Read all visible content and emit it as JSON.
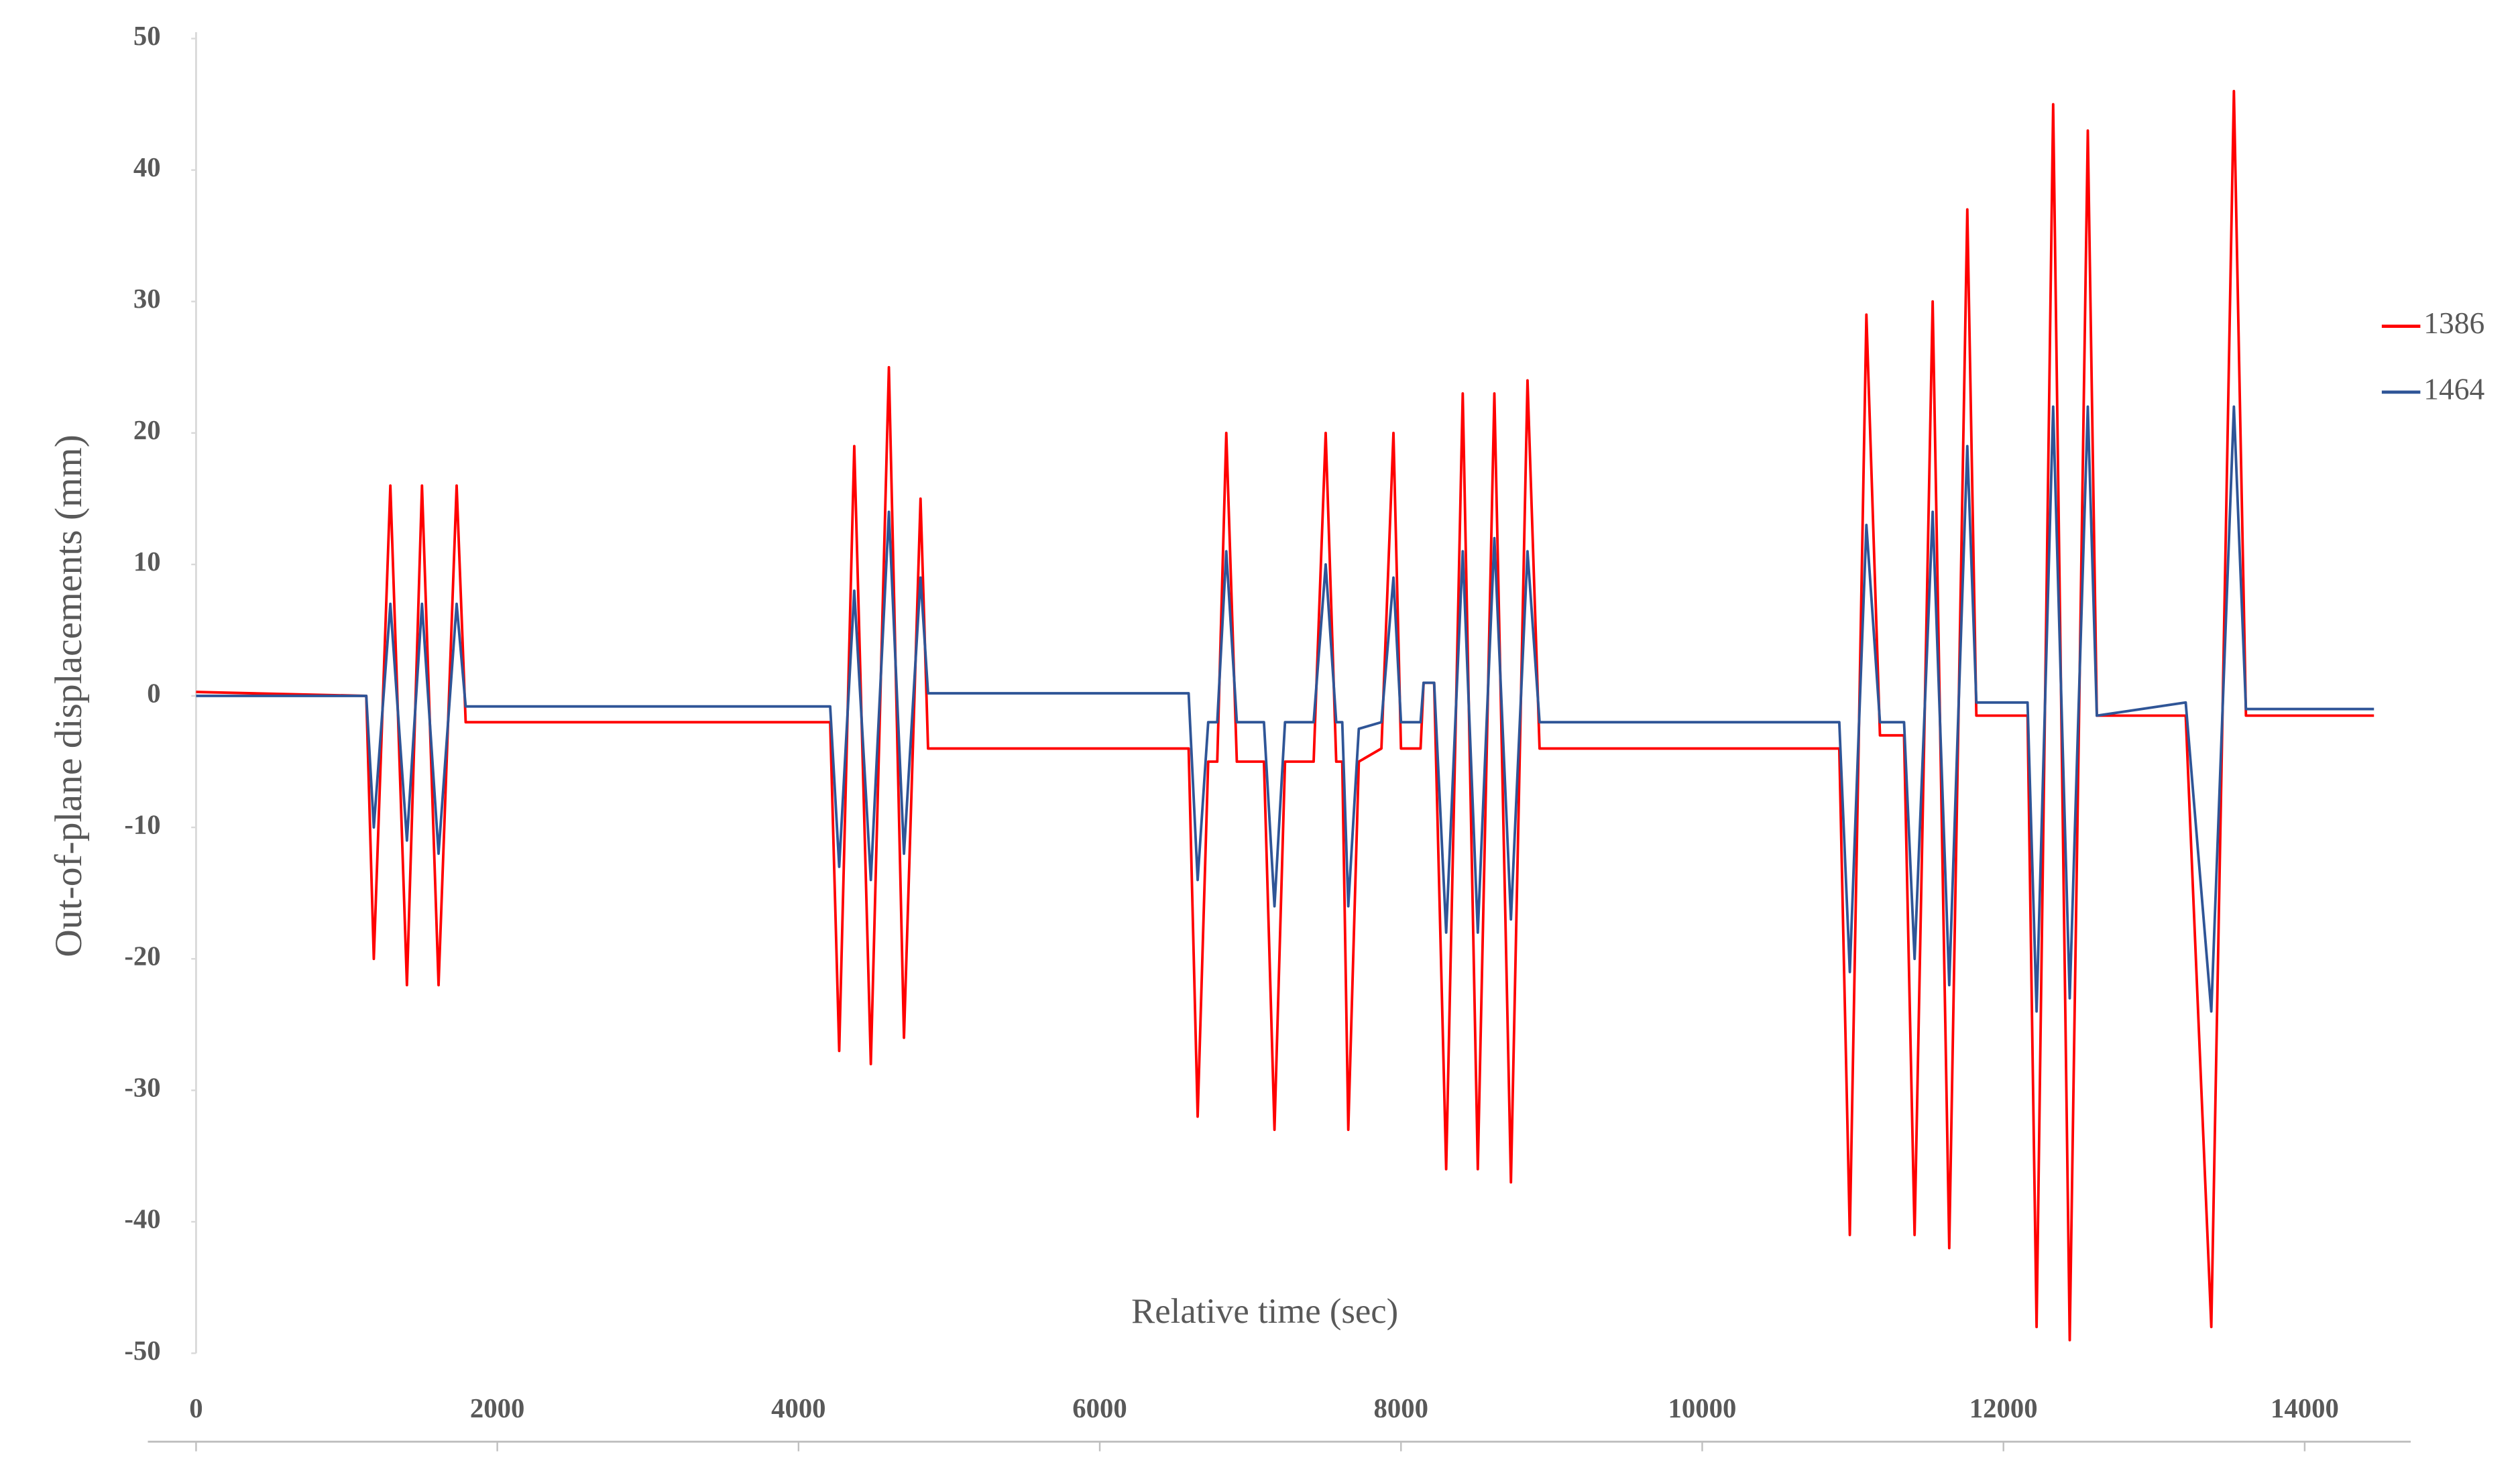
{
  "chart_data": {
    "type": "line",
    "x_label": "Relative time (sec)",
    "y_label": "Out-of-plane displacements (mm)",
    "x": [
      0,
      1130,
      1180,
      1290,
      1400,
      1500,
      1610,
      1730,
      1790,
      4210,
      4270,
      4370,
      4480,
      4600,
      4700,
      4810,
      4860,
      6590,
      6650,
      6720,
      6780,
      6840,
      6910,
      7090,
      7160,
      7230,
      7420,
      7500,
      7570,
      7610,
      7650,
      7720,
      7870,
      7950,
      8000,
      8130,
      8150,
      8220,
      8300,
      8410,
      8510,
      8620,
      8730,
      8840,
      8920,
      10910,
      10980,
      11090,
      11180,
      11340,
      11410,
      11530,
      11640,
      11760,
      11820,
      12160,
      12220,
      12330,
      12440,
      12560,
      12620,
      13210,
      13380,
      13530,
      13610,
      14460
    ],
    "series": [
      {
        "name": "1386",
        "color": "#ff0000",
        "values": [
          0.3,
          0,
          -20,
          16,
          -22,
          16,
          -22,
          16,
          -2,
          -2,
          -27,
          19,
          -28,
          25,
          -26,
          15,
          -4,
          -4,
          -32,
          -5,
          -5,
          20,
          -5,
          -5,
          -33,
          -5,
          -5,
          20,
          -5,
          -5,
          -33,
          -5,
          -4,
          20,
          -4,
          -4,
          1,
          1,
          -36,
          23,
          -36,
          23,
          -37,
          24,
          -4,
          -4,
          -41,
          29,
          -3,
          -3,
          -41,
          30,
          -42,
          37,
          -1.5,
          -1.5,
          -48,
          45,
          -49,
          43,
          -1.5,
          -1.5,
          -48,
          46,
          -1.5,
          -1.5
        ]
      },
      {
        "name": "1464",
        "color": "#2f5597",
        "values": [
          0,
          0,
          -10,
          7,
          -11,
          7,
          -12,
          7,
          -0.8,
          -0.8,
          -13,
          8,
          -14,
          14,
          -12,
          9,
          0.2,
          0.2,
          -14,
          -2,
          -2,
          11,
          -2,
          -2,
          -16,
          -2,
          -2,
          10,
          -2,
          -2,
          -16,
          -2.5,
          -2,
          9,
          -2,
          -2,
          1,
          1,
          -18,
          11,
          -18,
          12,
          -17,
          11,
          -2,
          -2,
          -21,
          13,
          -2,
          -2,
          -20,
          14,
          -22,
          19,
          -0.5,
          -0.5,
          -24,
          22,
          -23,
          22,
          -1.5,
          -0.5,
          -24,
          22,
          -1,
          -1
        ]
      }
    ],
    "xlim": [
      0,
      14800
    ],
    "xticks": [
      0,
      2000,
      4000,
      6000,
      8000,
      10000,
      12000,
      14000
    ],
    "ylim": [
      -50,
      50
    ],
    "yticks": [
      -50,
      -40,
      -30,
      -20,
      -10,
      0,
      10,
      20,
      30,
      40,
      50
    ],
    "grid": false,
    "legend": "right"
  }
}
